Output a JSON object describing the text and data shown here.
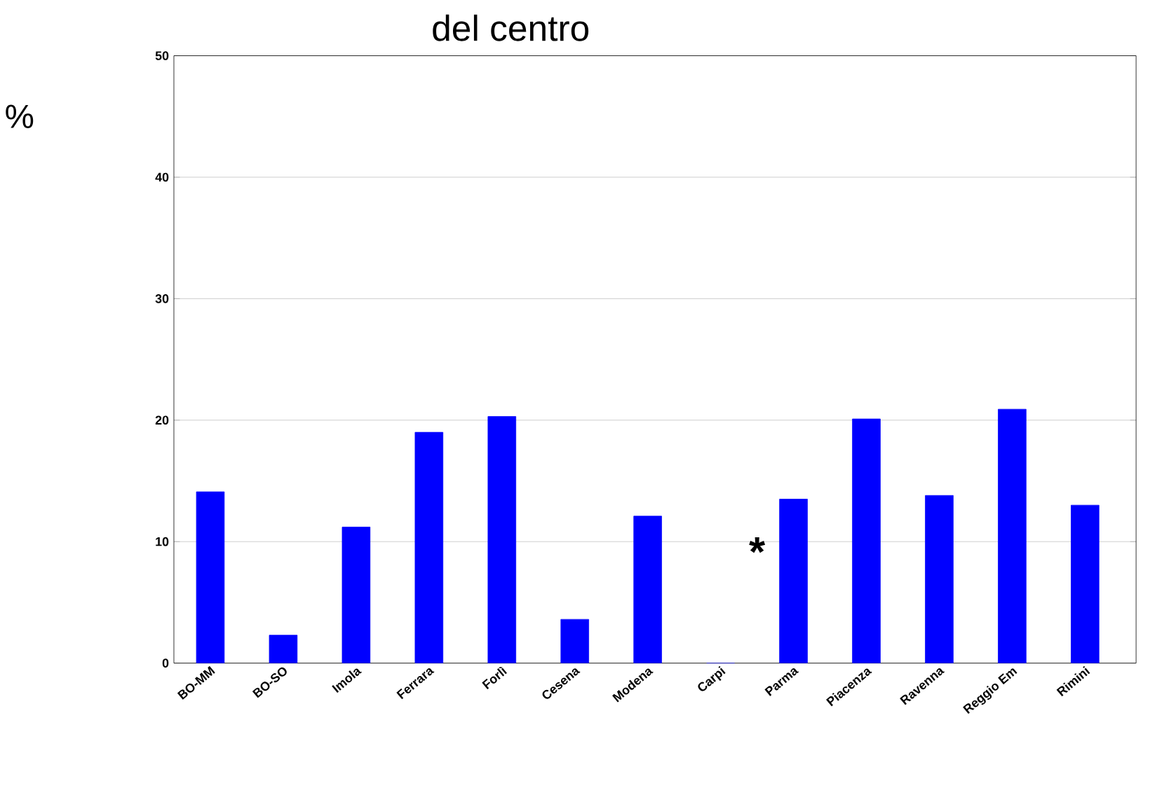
{
  "chart_data": {
    "type": "bar",
    "title": "del centro",
    "ylabel": "%",
    "categories": [
      "BO-MM",
      "BO-SO",
      "Imola",
      "Ferrara",
      "Forlì",
      "Cesena",
      "Modena",
      "Carpi",
      "Parma",
      "Piacenza",
      "Ravenna",
      "Reggio Em",
      "Rimini"
    ],
    "values": [
      14.1,
      2.3,
      11.2,
      19.0,
      20.3,
      3.6,
      12.1,
      0,
      13.5,
      20.1,
      13.8,
      20.9,
      13.0
    ],
    "color": "#0000ff",
    "ylim": [
      0,
      50
    ],
    "yticks": [
      0,
      10,
      20,
      30,
      40,
      50
    ],
    "grid": "y",
    "annotations": [
      "*"
    ]
  }
}
